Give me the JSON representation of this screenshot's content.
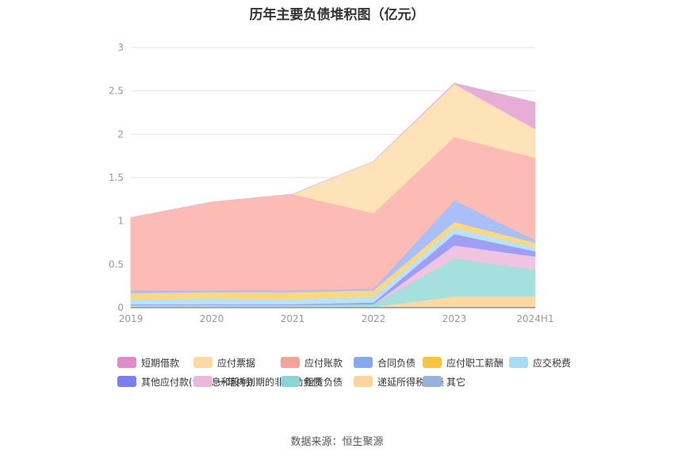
{
  "title": "历年主要负债堆积图（亿元）",
  "source": "数据来源：恒生聚源",
  "chart_data": {
    "type": "area",
    "stacked": true,
    "categories": [
      "2019",
      "2020",
      "2021",
      "2022",
      "2023",
      "2024H1"
    ],
    "ylim": [
      0,
      3
    ],
    "yticks": [
      "0",
      "0.5",
      "1",
      "1.5",
      "2",
      "2.5",
      "3"
    ],
    "grid": true,
    "legend_position": "bottom",
    "series": [
      {
        "name": "其它",
        "color": "#8fb0d9",
        "values": [
          0.01,
          0.01,
          0.01,
          0.01,
          0.01,
          0.01
        ]
      },
      {
        "name": "递延所得税负债",
        "color": "#fdd8a1",
        "values": [
          0.0,
          0.0,
          0.0,
          0.0,
          0.12,
          0.12
        ]
      },
      {
        "name": "租赁负债",
        "color": "#a5e0de",
        "values": [
          0.02,
          0.02,
          0.02,
          0.03,
          0.44,
          0.31
        ]
      },
      {
        "name": "一年内到期的非流动负债",
        "color": "#f0c4e0",
        "values": [
          0.0,
          0.0,
          0.0,
          0.0,
          0.15,
          0.15
        ]
      },
      {
        "name": "其他应付款(含利息和股利)",
        "color": "#9e9ef5",
        "values": [
          0.01,
          0.01,
          0.01,
          0.02,
          0.13,
          0.06
        ]
      },
      {
        "name": "应交税费",
        "color": "#b9e2f7",
        "values": [
          0.06,
          0.07,
          0.06,
          0.07,
          0.07,
          0.05
        ]
      },
      {
        "name": "应付职工薪酬",
        "color": "#fdd87e",
        "values": [
          0.07,
          0.07,
          0.08,
          0.07,
          0.07,
          0.05
        ]
      },
      {
        "name": "合同负债",
        "color": "#a8bff7",
        "values": [
          0.03,
          0.02,
          0.02,
          0.02,
          0.25,
          0.03
        ]
      },
      {
        "name": "应付账款",
        "color": "#fcbcb5",
        "values": [
          0.84,
          1.02,
          1.11,
          0.87,
          0.73,
          0.95
        ]
      },
      {
        "name": "应付票据",
        "color": "#ffe3b8",
        "values": [
          0.0,
          0.0,
          0.0,
          0.6,
          0.61,
          0.33
        ]
      },
      {
        "name": "短期借款",
        "color": "#e6add7",
        "values": [
          0.0,
          0.0,
          0.0,
          0.0,
          0.01,
          0.31
        ]
      }
    ],
    "legend": [
      {
        "name": "短期借款",
        "color": "#e28bc4"
      },
      {
        "name": "应付票据",
        "color": "#fdd9a0"
      },
      {
        "name": "应付账款",
        "color": "#f7a297"
      },
      {
        "name": "合同负债",
        "color": "#86a8f2"
      },
      {
        "name": "应付职工薪酬",
        "color": "#fbc43d"
      },
      {
        "name": "应交税费",
        "color": "#a6dcf5"
      },
      {
        "name": "其他应付款(含利息和股利)",
        "color": "#7b7ef0"
      },
      {
        "name": "一年内到期的非流动负债",
        "color": "#ebb8da"
      },
      {
        "name": "租赁负债",
        "color": "#8ad5d5"
      },
      {
        "name": "递延所得税负债",
        "color": "#fdd49a"
      },
      {
        "name": "其它",
        "color": "#95b2da"
      }
    ]
  }
}
